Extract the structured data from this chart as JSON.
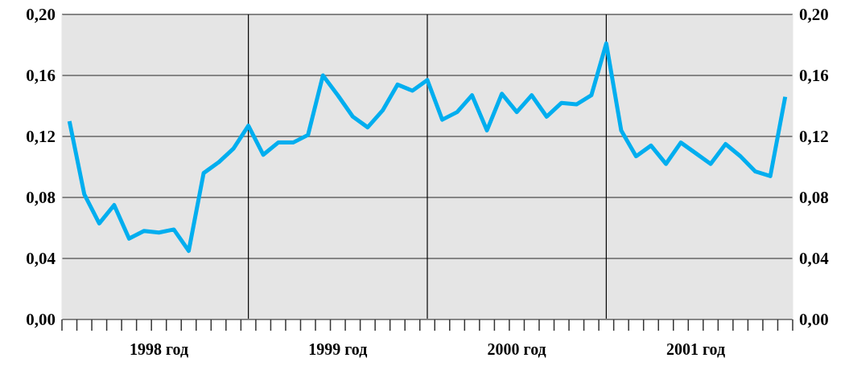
{
  "chart_data": {
    "type": "line",
    "categories": [
      null,
      null,
      null,
      null,
      null,
      null,
      "1998 год",
      null,
      null,
      null,
      null,
      null,
      null,
      null,
      null,
      null,
      null,
      null,
      "1999 год",
      null,
      null,
      null,
      null,
      null,
      null,
      null,
      null,
      null,
      null,
      null,
      "2000 год",
      null,
      null,
      null,
      null,
      null,
      null,
      null,
      null,
      null,
      null,
      null,
      "2001 год",
      null,
      null,
      null,
      null,
      null,
      null
    ],
    "series": [
      {
        "color": "#00aeef",
        "values": [
          0.13,
          0.082,
          0.063,
          0.075,
          0.053,
          0.058,
          0.057,
          0.059,
          0.045,
          0.096,
          0.103,
          0.112,
          0.127,
          0.108,
          0.116,
          0.116,
          0.121,
          0.16,
          0.147,
          0.133,
          0.126,
          0.137,
          0.154,
          0.15,
          0.157,
          0.131,
          0.136,
          0.147,
          0.124,
          0.148,
          0.136,
          0.147,
          0.133,
          0.142,
          0.141,
          0.147,
          0.181,
          0.124,
          0.107,
          0.114,
          0.102,
          0.116,
          0.109,
          0.102,
          0.115,
          0.107,
          0.097,
          0.094,
          0.146
        ]
      }
    ],
    "ylim": [
      0,
      0.2
    ],
    "yticks": [
      {
        "value": 0,
        "label": "0,00"
      },
      {
        "value": 0.04,
        "label": "0,04"
      },
      {
        "value": 0.08,
        "label": "0,08"
      },
      {
        "value": 0.12,
        "label": "0,12"
      },
      {
        "value": 0.16,
        "label": "0,16"
      },
      {
        "value": 0.2,
        "label": "0,20"
      }
    ],
    "y2lim": [
      0,
      0.2
    ],
    "y2ticks": [
      {
        "value": 0,
        "label": "0,00"
      },
      {
        "value": 0.04,
        "label": "0,04"
      },
      {
        "value": 0.08,
        "label": "0,08"
      },
      {
        "value": 0.12,
        "label": "0,12"
      },
      {
        "value": 0.16,
        "label": "0,16"
      },
      {
        "value": 0.2,
        "label": "0,20"
      }
    ],
    "grid": true,
    "marker": "none",
    "line_style": "solid"
  }
}
